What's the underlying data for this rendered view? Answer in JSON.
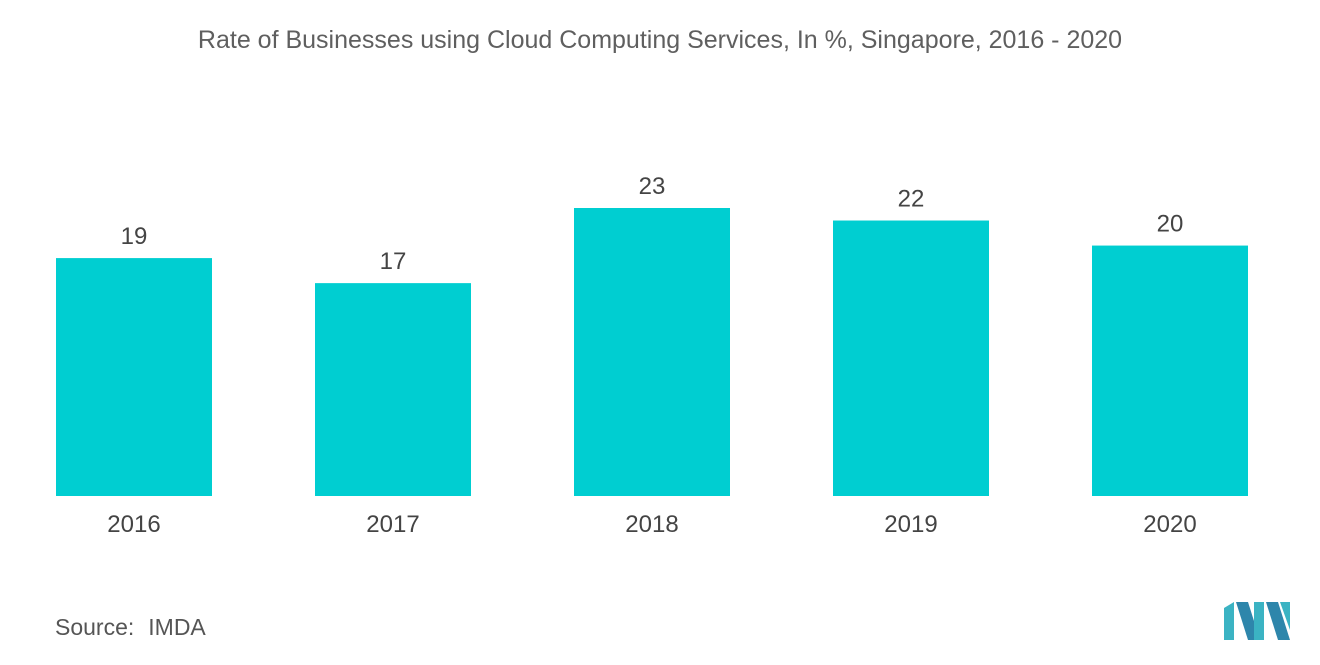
{
  "chart_data": {
    "type": "bar",
    "title": "Rate of Businesses using Cloud Computing Services, In %, Singapore, 2016 - 2020",
    "categories": [
      "2016",
      "2017",
      "2018",
      "2019",
      "2020"
    ],
    "values": [
      19,
      17,
      23,
      22,
      20
    ],
    "ylim": [
      0,
      23
    ],
    "grid": false,
    "bar_color": "#00CED1"
  },
  "source": {
    "label": "Source:",
    "value": "IMDA"
  },
  "colors": {
    "logo_teal": "#3BB3C3",
    "logo_navy": "#1F4E79"
  },
  "logo_icon": "mordor-intelligence-logo-icon"
}
